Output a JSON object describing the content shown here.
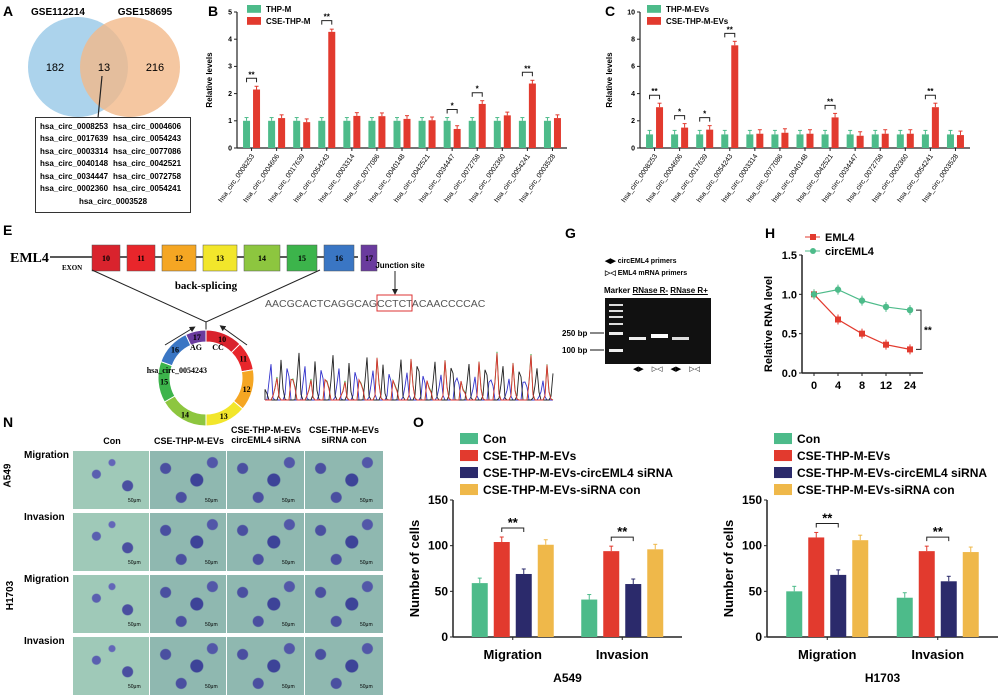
{
  "panels": {
    "A": "A",
    "B": "B",
    "C": "C",
    "E": "E",
    "G": "G",
    "H": "H",
    "N": "N",
    "O": "O"
  },
  "colors": {
    "green": "#4dbb8a",
    "red": "#e23a2e",
    "navy": "#2b2a6b",
    "yellow": "#efb84a",
    "blue_circle": "#9ecbe9",
    "orange_circle": "#f3b98a"
  },
  "venn": {
    "left_label": "GSE112214",
    "right_label": "GSE158695",
    "left_only": "182",
    "overlap": "13",
    "right_only": "216",
    "list": [
      "hsa_circ_0008253",
      "hsa_circ_0004606",
      "hsa_circ_0017639",
      "hsa_circ_0054243",
      "hsa_circ_0003314",
      "hsa_circ_0077086",
      "hsa_circ_0040148",
      "hsa_circ_0042521",
      "hsa_circ_0034447",
      "hsa_circ_0072758",
      "hsa_circ_0002360",
      "hsa_circ_0054241",
      "hsa_circ_0003528"
    ]
  },
  "schematic": {
    "gene": "EML4",
    "exon_label": "EXON",
    "exons": [
      "10",
      "11",
      "12",
      "13",
      "14",
      "15",
      "16",
      "17"
    ],
    "exon_colors": [
      "#d9232d",
      "#e8262b",
      "#f5a623",
      "#f2e62b",
      "#8dc63f",
      "#3cb44b",
      "#3a76c4",
      "#6a3b9e"
    ],
    "back_splicing": "back-splicing",
    "circ_name": "hsa_circ_0054243",
    "ag": "AG",
    "cc": "CC",
    "junction": "Junction site",
    "sequence": "AACGCACTCAGGCAGCCTCTACAACCCCAC"
  },
  "gel": {
    "legend1": "circEML4 primers",
    "legend2": "EML4 mRNA primers",
    "marker": "Marker",
    "rnase_minus": "RNase R-",
    "rnase_plus": "RNase R+",
    "bp250": "250 bp",
    "bp100": "100 bp",
    "sym_circ": "◀▶",
    "sym_mrna": "▷◁"
  },
  "micrographs": {
    "columns": [
      "Con",
      "CSE-THP-M-EVs",
      "CSE-THP-M-EVs circEML4 siRNA",
      "CSE-THP-M-EVs siRNA con"
    ],
    "cell_lines": [
      "A549",
      "H1703"
    ],
    "rows": [
      "Migration",
      "Invasion",
      "Migration",
      "Invasion"
    ],
    "scale": "50μm"
  },
  "chart_data": [
    {
      "id": "B",
      "type": "bar",
      "ylabel": "Relative  levels",
      "ylim": [
        0,
        5
      ],
      "yticks": [
        0,
        1,
        2,
        3,
        4,
        5
      ],
      "categories": [
        "hsa_circ_0008253",
        "hsa_circ_0004606",
        "hsa_circ_0017639",
        "hsa_circ_0054243",
        "hsa_circ_0003314",
        "hsa_circ_0077086",
        "hsa_circ_0040148",
        "hsa_circ_0042521",
        "hsa_circ_0034447",
        "hsa_circ_0072758",
        "hsa_circ_0002360",
        "hsa_circ_0054241",
        "hsa_circ_0003528"
      ],
      "series": [
        {
          "name": "THP-M",
          "color": "#4dbb8a",
          "values": [
            1,
            1,
            1,
            1,
            1,
            1,
            1,
            1,
            1,
            1,
            1,
            1,
            1
          ]
        },
        {
          "name": "CSE-THP-M",
          "color": "#e23a2e",
          "values": [
            2.15,
            1.1,
            0.95,
            4.27,
            1.18,
            1.17,
            1.07,
            1.02,
            0.7,
            1.62,
            1.2,
            2.37,
            1.1
          ]
        }
      ],
      "significance": [
        "**",
        "",
        "",
        "**",
        "",
        "",
        "",
        "",
        "*",
        "*",
        "",
        "**",
        ""
      ],
      "legend": "top-left"
    },
    {
      "id": "C",
      "type": "bar",
      "ylabel": "Relative  levels",
      "ylim": [
        0,
        10
      ],
      "yticks": [
        0,
        2,
        4,
        6,
        8,
        10
      ],
      "categories": [
        "hsa_circ_0008253",
        "hsa_circ_0004606",
        "hsa_circ_0017639",
        "hsa_circ_0054243",
        "hsa_circ_0003314",
        "hsa_circ_0077086",
        "hsa_circ_0040148",
        "hsa_circ_0042521",
        "hsa_circ_0034447",
        "hsa_circ_0072758",
        "hsa_circ_0002360",
        "hsa_circ_0054241",
        "hsa_circ_0003528"
      ],
      "series": [
        {
          "name": "THP-M-EVs",
          "color": "#4dbb8a",
          "values": [
            1,
            1,
            1,
            1,
            1,
            1,
            1,
            1,
            1,
            1,
            1,
            1,
            1
          ]
        },
        {
          "name": "CSE-THP-M-EVs",
          "color": "#e23a2e",
          "values": [
            3.0,
            1.5,
            1.35,
            7.55,
            1.05,
            1.12,
            1.05,
            2.25,
            0.9,
            1.05,
            1.05,
            3.0,
            0.95
          ]
        }
      ],
      "significance": [
        "**",
        "*",
        "*",
        "**",
        "",
        "",
        "",
        "**",
        "",
        "",
        "",
        "**",
        ""
      ],
      "legend": "top-left"
    },
    {
      "id": "H",
      "type": "line",
      "ylabel": "Relative RNA level",
      "ylim": [
        0,
        1.5
      ],
      "yticks": [
        "0.0",
        "0.5",
        "1.0",
        "1.5"
      ],
      "x": [
        "0",
        "4",
        "8",
        "12",
        "24"
      ],
      "series": [
        {
          "name": "EML4",
          "color": "#e23a2e",
          "values": [
            1.0,
            0.68,
            0.5,
            0.36,
            0.3
          ]
        },
        {
          "name": "circEML4",
          "color": "#4dbb8a",
          "values": [
            1.0,
            1.06,
            0.92,
            0.84,
            0.8
          ]
        }
      ],
      "significance": "**",
      "legend": "top-left"
    },
    {
      "id": "O1",
      "type": "bar",
      "ylabel": "Number of cells",
      "xlabel": "A549",
      "ylim": [
        0,
        150
      ],
      "yticks": [
        0,
        50,
        100,
        150
      ],
      "categories": [
        "Migration",
        "Invasion"
      ],
      "series": [
        {
          "name": "Con",
          "color": "#4dbb8a",
          "values": [
            59,
            41
          ]
        },
        {
          "name": "CSE-THP-M-EVs",
          "color": "#e23a2e",
          "values": [
            104,
            94
          ]
        },
        {
          "name": "CSE-THP-M-EVs-circEML4 siRNA",
          "color": "#2b2a6b",
          "values": [
            69,
            58
          ]
        },
        {
          "name": "CSE-THP-M-EVs-siRNA con",
          "color": "#efb84a",
          "values": [
            101,
            96
          ]
        }
      ],
      "significance": "**",
      "legend": "top"
    },
    {
      "id": "O2",
      "type": "bar",
      "ylabel": "Number of cells",
      "xlabel": "H1703",
      "ylim": [
        0,
        150
      ],
      "yticks": [
        0,
        50,
        100,
        150
      ],
      "categories": [
        "Migration",
        "Invasion"
      ],
      "series": [
        {
          "name": "Con",
          "color": "#4dbb8a",
          "values": [
            50,
            43
          ]
        },
        {
          "name": "CSE-THP-M-EVs",
          "color": "#e23a2e",
          "values": [
            109,
            94
          ]
        },
        {
          "name": "CSE-THP-M-EVs-circEML4 siRNA",
          "color": "#2b2a6b",
          "values": [
            68,
            61
          ]
        },
        {
          "name": "CSE-THP-M-EVs-siRNA con",
          "color": "#efb84a",
          "values": [
            106,
            93
          ]
        }
      ],
      "significance": "**",
      "legend": "top"
    }
  ]
}
